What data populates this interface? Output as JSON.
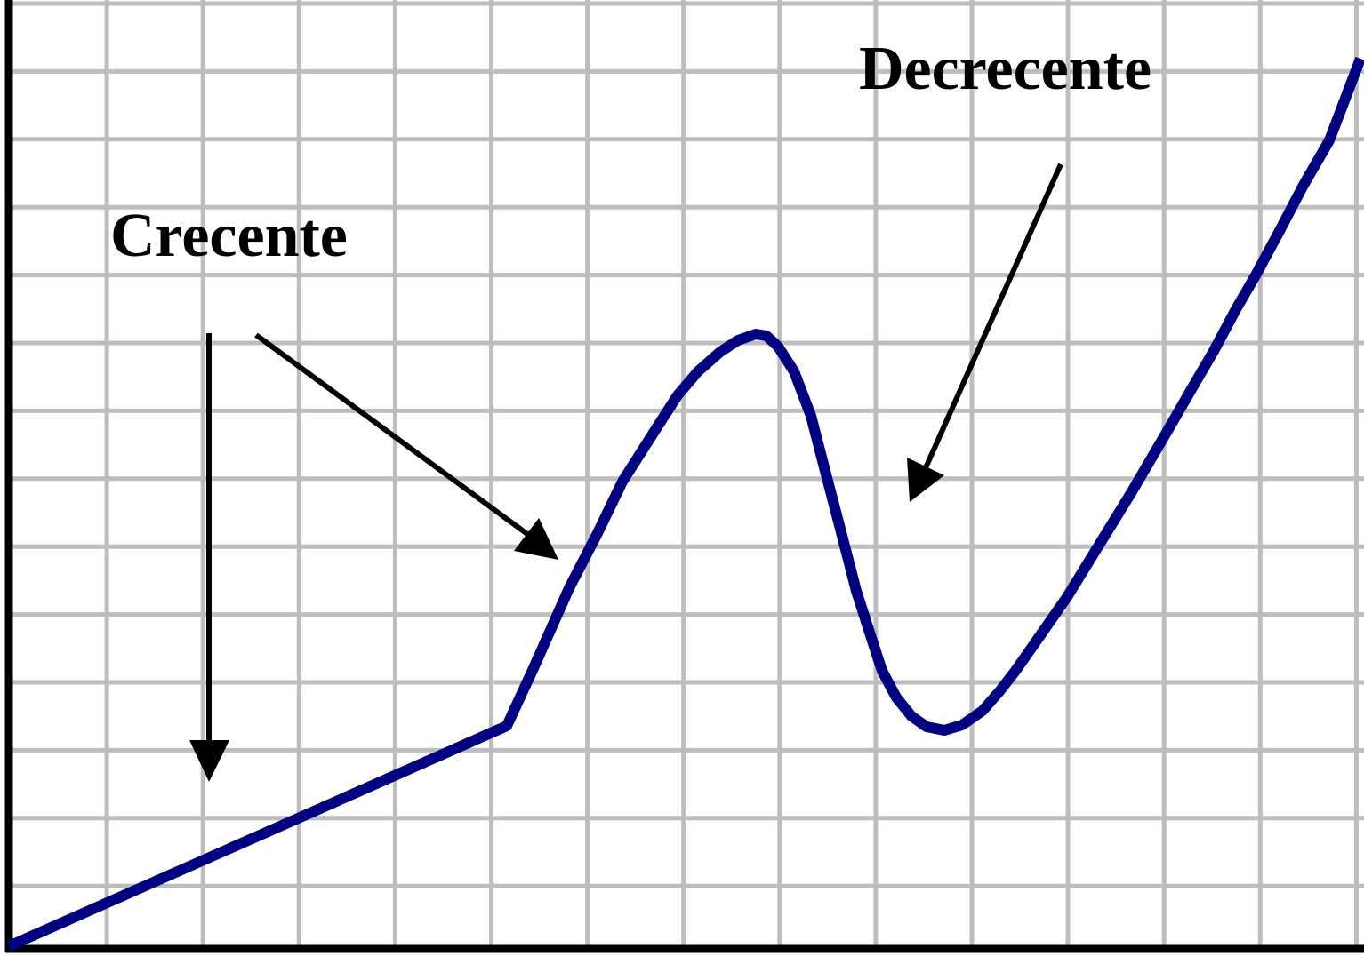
{
  "labels": {
    "increasing": "Crecente",
    "decreasing": "Decrecente"
  }
}
